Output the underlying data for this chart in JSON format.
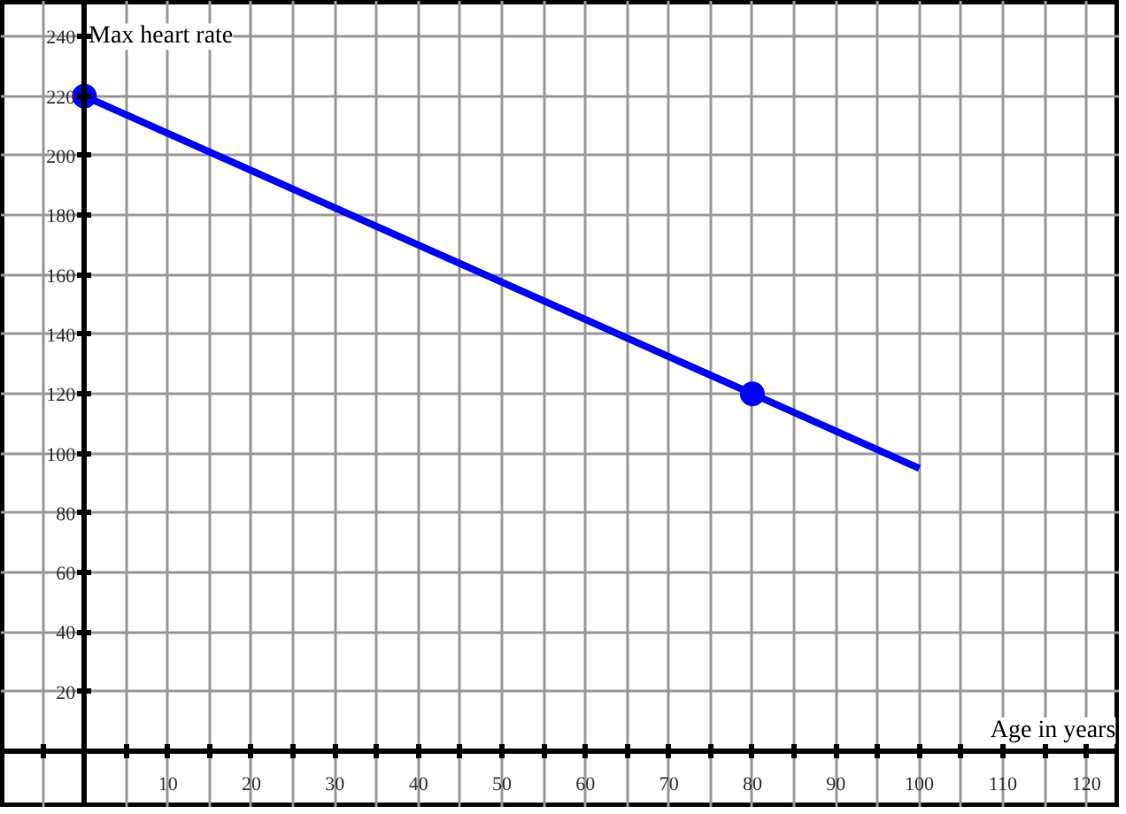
{
  "chart_data": {
    "type": "line",
    "xlabel": "Age in years",
    "ylabel": "Max heart rate",
    "xlim": [
      -10,
      124
    ],
    "ylim": [
      -19,
      252
    ],
    "xticks": [
      {
        "value": -5,
        "label": null
      },
      {
        "value": 5,
        "label": null
      },
      10,
      {
        "value": 15,
        "label": null
      },
      20,
      {
        "value": 25,
        "label": null
      },
      30,
      {
        "value": 35,
        "label": null
      },
      40,
      {
        "value": 45,
        "label": null
      },
      50,
      {
        "value": 55,
        "label": null
      },
      60,
      {
        "value": 65,
        "label": null
      },
      70,
      {
        "value": 75,
        "label": null
      },
      80,
      {
        "value": 85,
        "label": null
      },
      90,
      {
        "value": 95,
        "label": null
      },
      100,
      {
        "value": 105,
        "label": null
      },
      110,
      {
        "value": 115,
        "label": null
      },
      120
    ],
    "yticks": [
      20,
      40,
      60,
      80,
      100,
      120,
      140,
      160,
      180,
      200,
      220,
      240
    ],
    "grid": true,
    "series": [
      {
        "color": "#0000ff",
        "x": [
          0,
          80,
          100
        ],
        "values": [
          220,
          120,
          95
        ]
      },
      {
        "type": "scatter",
        "color": "#0000ff",
        "x": [
          0,
          80
        ],
        "values": [
          220,
          120
        ],
        "marker": "circle"
      }
    ]
  }
}
